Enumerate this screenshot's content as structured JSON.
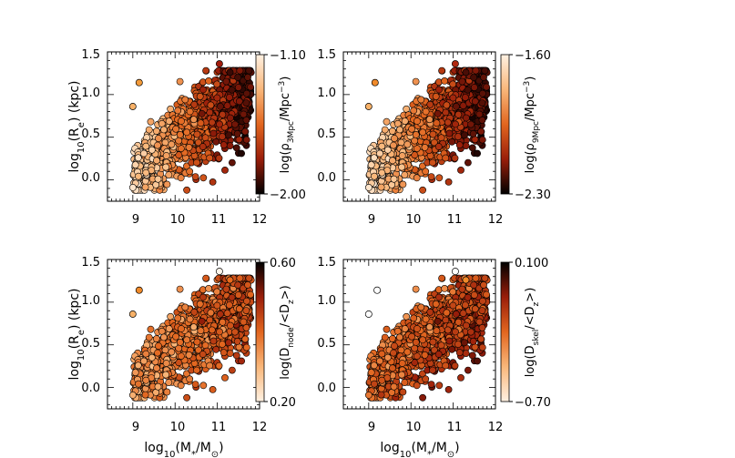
{
  "chart_data": [
    {
      "type": "scatter",
      "id": "tl",
      "xlim": [
        8.4,
        12.0
      ],
      "ylim": [
        -0.25,
        1.5
      ],
      "xticks": [
        "9",
        "10",
        "11",
        "12"
      ],
      "yticks": [
        "0.0",
        "0.5",
        "1.0",
        "1.5"
      ],
      "ylabel": "log10(Re) (kpc)",
      "ylabel_parts": {
        "a": "log",
        "b": "10",
        "c": "(R",
        "d": "e",
        "e": ") (kpc)"
      },
      "xlabel": "",
      "colorbar": {
        "top_label": "−1.10",
        "bottom_label": "−2.00",
        "top_color": "#fff1e2",
        "bottom_color": "#000000",
        "label": "log(ρ3Mpc/Mpc−3)",
        "label_parts": {
          "a": "log(",
          "b": "ρ",
          "c": "3Mpc",
          "d": "/Mpc",
          "e": "−3",
          "f": ")"
        }
      },
      "color_trend": "mass",
      "outliers": [
        {
          "x": 9.15,
          "y": 1.14,
          "c": "#f29a3a"
        },
        {
          "x": 9.0,
          "y": 0.86,
          "c": "#f7b168"
        },
        {
          "x": 11.05,
          "y": 1.36,
          "c": "#a31c0c"
        },
        {
          "x": 11.3,
          "y": 1.26,
          "c": "#3a0a05"
        }
      ]
    },
    {
      "type": "scatter",
      "id": "tr",
      "xlim": [
        8.4,
        12.0
      ],
      "ylim": [
        -0.25,
        1.5
      ],
      "xticks": [
        "9",
        "10",
        "11",
        "12"
      ],
      "yticks": [
        "0.0",
        "0.5",
        "1.0",
        "1.5"
      ],
      "ylabel": "",
      "xlabel": "",
      "colorbar": {
        "top_label": "−1.60",
        "bottom_label": "−2.30",
        "top_color": "#fff1e2",
        "bottom_color": "#000000",
        "label": "log(ρ9Mpc/Mpc−3)",
        "label_parts": {
          "a": "log(",
          "b": "ρ",
          "c": "9Mpc",
          "d": "/Mpc",
          "e": "−3",
          "f": ")"
        }
      },
      "color_trend": "mass",
      "outliers": [
        {
          "x": 9.15,
          "y": 1.14,
          "c": "#f08a2a"
        },
        {
          "x": 9.0,
          "y": 0.86,
          "c": "#f7b168"
        },
        {
          "x": 11.05,
          "y": 1.36,
          "c": "#b02810"
        },
        {
          "x": 11.3,
          "y": 1.26,
          "c": "#4a0d06"
        }
      ]
    },
    {
      "type": "scatter",
      "id": "bl",
      "xlim": [
        8.4,
        12.0
      ],
      "ylim": [
        -0.25,
        1.5
      ],
      "xticks": [
        "9",
        "10",
        "11",
        "12"
      ],
      "yticks": [
        "0.0",
        "0.5",
        "1.0",
        "1.5"
      ],
      "ylabel": "log10(Re) (kpc)",
      "ylabel_parts": {
        "a": "log",
        "b": "10",
        "c": "(R",
        "d": "e",
        "e": ") (kpc)"
      },
      "xlabel": "log10(M*/M⊙)",
      "xlabel_parts": {
        "a": "log",
        "b": "10",
        "c": "(M",
        "d": "*",
        "e": "/M",
        "f": "⊙",
        "g": ")"
      },
      "colorbar": {
        "top_label": "0.60",
        "bottom_label": "0.20",
        "top_color": "#000000",
        "bottom_color": "#fff1e2",
        "label": "log(Dnode/<Dz>)",
        "label_parts": {
          "a": "log(D",
          "b": "node",
          "c": "/<D",
          "d": "z",
          "e": ">)"
        }
      },
      "color_trend": "mid",
      "outliers": [
        {
          "x": 9.15,
          "y": 1.14,
          "c": "#f08a2a"
        },
        {
          "x": 9.0,
          "y": 0.86,
          "c": "#f7b168"
        },
        {
          "x": 11.05,
          "y": 1.36,
          "c": "#fff5ea"
        },
        {
          "x": 11.3,
          "y": 1.26,
          "c": "#e86a1c"
        }
      ]
    },
    {
      "type": "scatter",
      "id": "br",
      "xlim": [
        8.4,
        12.0
      ],
      "ylim": [
        -0.25,
        1.5
      ],
      "xticks": [
        "9",
        "10",
        "11",
        "12"
      ],
      "yticks": [
        "0.0",
        "0.5",
        "1.0",
        "1.5"
      ],
      "ylabel": "",
      "xlabel": "log10(M*/M⊙)",
      "xlabel_parts": {
        "a": "log",
        "b": "10",
        "c": "(M",
        "d": "*",
        "e": "/M",
        "f": "⊙",
        "g": ")"
      },
      "colorbar": {
        "top_label": "0.100",
        "bottom_label": "−0.70",
        "top_color": "#000000",
        "bottom_color": "#fff1e2",
        "label": "log(Dskel/<Dz>)",
        "label_parts": {
          "a": "log(D",
          "b": "skel",
          "c": "/<D",
          "d": "z",
          "e": ">)"
        }
      },
      "color_trend": "dark",
      "outliers": [
        {
          "x": 9.2,
          "y": 1.14,
          "c": "#ffffff"
        },
        {
          "x": 9.0,
          "y": 0.86,
          "c": "#ffffff"
        },
        {
          "x": 11.05,
          "y": 1.36,
          "c": "#ffffff"
        },
        {
          "x": 11.3,
          "y": 1.26,
          "c": "#f08a2a"
        }
      ]
    }
  ]
}
